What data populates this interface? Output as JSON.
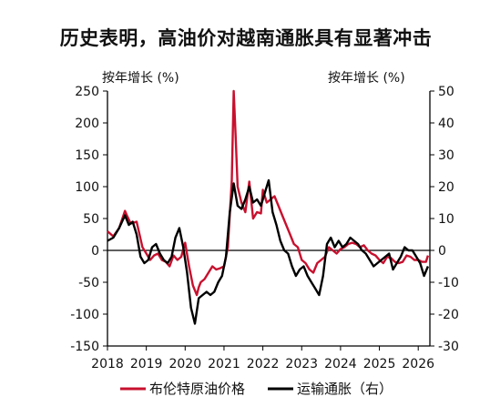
{
  "chart_data": {
    "type": "line",
    "title": "历史表明，高油价对越南通胀具有显著冲击",
    "y_left_label": "按年增长 (%)",
    "y_right_label": "按年增长 (%)",
    "y_left_lim": [
      -150,
      250
    ],
    "y_right_lim": [
      -30,
      50
    ],
    "y_left_ticks": [
      250,
      200,
      150,
      100,
      50,
      0,
      -50,
      -100,
      -150
    ],
    "y_right_ticks": [
      50,
      40,
      30,
      20,
      10,
      0,
      -10,
      -20,
      -30
    ],
    "x_lim": [
      2018,
      2026.3
    ],
    "x_ticks": [
      "2018",
      "2019",
      "2020",
      "2021",
      "2022",
      "2023",
      "2024",
      "2025",
      "2026"
    ],
    "grid": false,
    "legend_position": "bottom",
    "series": [
      {
        "name": "布伦特原油价格",
        "axis": "left",
        "color": "#c8102e",
        "x": [
          2018.0,
          2018.15,
          2018.3,
          2018.45,
          2018.5,
          2018.6,
          2018.75,
          2018.9,
          2019.0,
          2019.1,
          2019.2,
          2019.3,
          2019.4,
          2019.5,
          2019.6,
          2019.7,
          2019.8,
          2019.9,
          2020.0,
          2020.1,
          2020.2,
          2020.3,
          2020.35,
          2020.4,
          2020.5,
          2020.6,
          2020.7,
          2020.8,
          2020.9,
          2021.0,
          2021.1,
          2021.2,
          2021.25,
          2021.3,
          2021.35,
          2021.45,
          2021.55,
          2021.65,
          2021.75,
          2021.85,
          2021.95,
          2022.0,
          2022.1,
          2022.2,
          2022.3,
          2022.4,
          2022.5,
          2022.6,
          2022.7,
          2022.8,
          2022.9,
          2023.0,
          2023.1,
          2023.2,
          2023.3,
          2023.4,
          2023.5,
          2023.6,
          2023.7,
          2023.8,
          2023.9,
          2024.0,
          2024.1,
          2024.2,
          2024.3,
          2024.4,
          2024.5,
          2024.6,
          2024.7,
          2024.8,
          2024.9,
          2025.0,
          2025.1,
          2025.2,
          2025.3,
          2025.4,
          2025.5,
          2025.6,
          2025.7,
          2025.8,
          2025.9,
          2026.0,
          2026.1,
          2026.2,
          2026.25
        ],
        "values": [
          30,
          22,
          35,
          62,
          55,
          42,
          45,
          5,
          -5,
          -15,
          -8,
          -5,
          -15,
          -18,
          -25,
          -8,
          -15,
          -10,
          12,
          -25,
          -55,
          -70,
          -58,
          -50,
          -45,
          -35,
          -25,
          -30,
          -28,
          -25,
          5,
          110,
          250,
          180,
          100,
          75,
          60,
          108,
          50,
          60,
          58,
          95,
          75,
          80,
          85,
          70,
          55,
          40,
          25,
          10,
          5,
          -15,
          -20,
          -30,
          -35,
          -20,
          -15,
          -10,
          5,
          0,
          -5,
          2,
          5,
          10,
          12,
          10,
          5,
          8,
          0,
          -5,
          -8,
          -15,
          -20,
          -10,
          -12,
          -18,
          -20,
          -18,
          -8,
          -10,
          -15,
          -15,
          -18,
          -18,
          -8
        ]
      },
      {
        "name": "运输通胀（右）",
        "axis": "right",
        "color": "#000000",
        "x": [
          2018.0,
          2018.15,
          2018.3,
          2018.45,
          2018.55,
          2018.65,
          2018.75,
          2018.85,
          2018.95,
          2019.05,
          2019.15,
          2019.25,
          2019.35,
          2019.45,
          2019.55,
          2019.65,
          2019.75,
          2019.85,
          2019.95,
          2020.05,
          2020.15,
          2020.25,
          2020.35,
          2020.45,
          2020.55,
          2020.65,
          2020.75,
          2020.85,
          2020.95,
          2021.05,
          2021.15,
          2021.25,
          2021.35,
          2021.45,
          2021.55,
          2021.65,
          2021.75,
          2021.85,
          2021.95,
          2022.05,
          2022.15,
          2022.25,
          2022.35,
          2022.45,
          2022.55,
          2022.65,
          2022.75,
          2022.85,
          2022.95,
          2023.05,
          2023.15,
          2023.25,
          2023.35,
          2023.45,
          2023.55,
          2023.65,
          2023.75,
          2023.85,
          2023.95,
          2024.05,
          2024.15,
          2024.25,
          2024.35,
          2024.45,
          2024.55,
          2024.65,
          2024.75,
          2024.85,
          2024.95,
          2025.05,
          2025.15,
          2025.25,
          2025.35,
          2025.45,
          2025.55,
          2025.65,
          2025.75,
          2025.85,
          2025.95,
          2026.05,
          2026.15,
          2026.25
        ],
        "values": [
          3,
          4,
          7,
          11,
          8,
          9,
          5,
          -2,
          -4,
          -3,
          1,
          2,
          -1,
          -3,
          -4,
          -2,
          4,
          7,
          1,
          -7,
          -18,
          -23,
          -15,
          -14,
          -13,
          -14,
          -13,
          -10,
          -8,
          -2,
          12,
          21,
          14,
          13,
          16,
          20,
          15,
          16,
          14,
          18,
          22,
          12,
          8,
          3,
          0,
          -1,
          -5,
          -8,
          -6,
          -5,
          -8,
          -10,
          -12,
          -14,
          -8,
          2,
          4,
          1,
          3,
          1,
          2,
          4,
          3,
          2,
          0,
          -1,
          -3,
          -5,
          -4,
          -3,
          -2,
          -1,
          -6,
          -4,
          -2,
          1,
          0,
          0,
          -2,
          -4,
          -8,
          -5
        ]
      }
    ]
  }
}
